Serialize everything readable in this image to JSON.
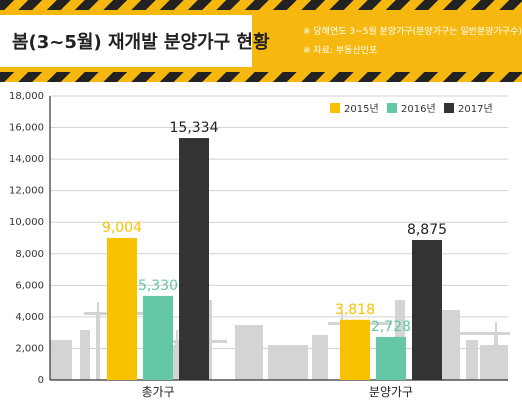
{
  "header": {
    "title": "봄(3~5월) 재개발 분양가구 현황",
    "note_1": "※ 당해연도 3~5월 분양가구(분양가구는 일반분양가구수)",
    "note_2": "※ 자료: 부동산인포"
  },
  "colors": {
    "brand": "#f6b80f",
    "s2015": "#f9c200",
    "s2016": "#64c8a6",
    "s2017": "#333333",
    "skyline": "#d4d4d4"
  },
  "chart_data": {
    "type": "bar",
    "title": "",
    "xlabel": "",
    "ylabel": "",
    "categories": [
      "총가구",
      "분양가구"
    ],
    "series": [
      {
        "name": "2015년",
        "values": [
          9004,
          3818
        ]
      },
      {
        "name": "2016년",
        "values": [
          5330,
          2728
        ]
      },
      {
        "name": "2017년",
        "values": [
          15334,
          8875
        ]
      }
    ],
    "value_labels": [
      [
        "9,004",
        "3,818"
      ],
      [
        "5,330",
        "2,728"
      ],
      [
        "15,334",
        "8,875"
      ]
    ],
    "ylim": [
      0,
      18000
    ],
    "yticks": [
      0,
      2000,
      4000,
      6000,
      8000,
      10000,
      12000,
      14000,
      16000,
      18000
    ],
    "ytick_labels": [
      "0",
      "2,000",
      "4,000",
      "6,000",
      "8,000",
      "10,000",
      "12,000",
      "14,000",
      "16,000",
      "18,000"
    ],
    "grid": true,
    "legend_position": "top-right"
  }
}
